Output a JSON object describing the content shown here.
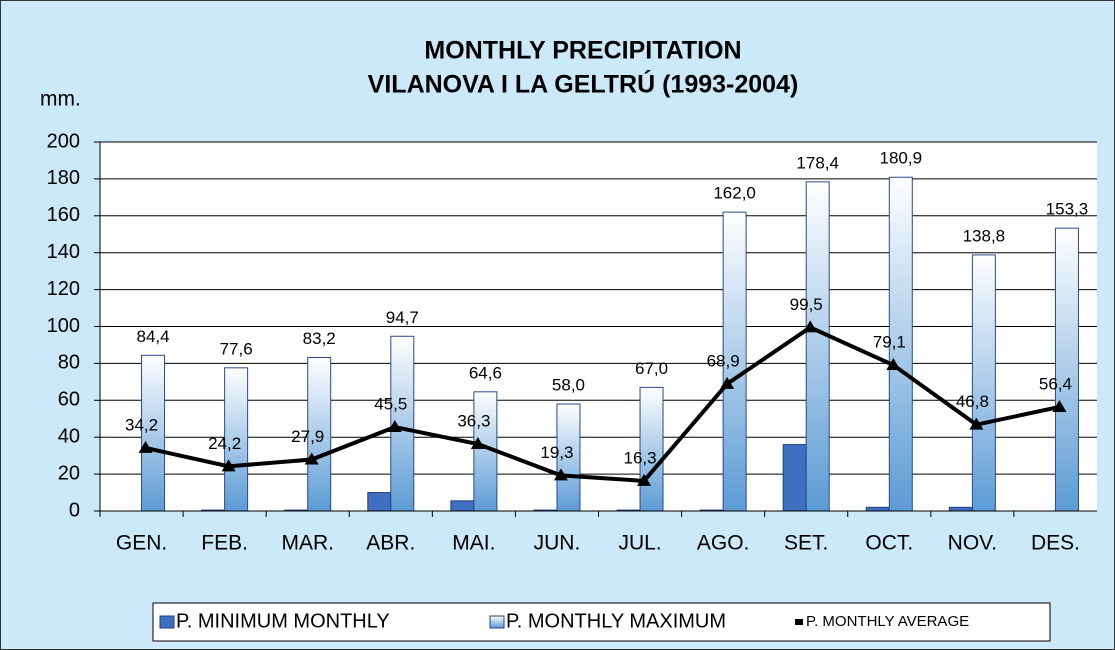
{
  "chart_data": {
    "type": "bar",
    "title": "MONTHLY PRECIPITATION",
    "subtitle": "VILANOVA I LA GELTRÚ (1993-2004)",
    "y_label": "mm.",
    "categories": [
      "GEN.",
      "FEB.",
      "MAR.",
      "ABR.",
      "MAI.",
      "JUN.",
      "JUL.",
      "AGO.",
      "SET.",
      "OCT.",
      "NOV.",
      "DES."
    ],
    "series": [
      {
        "name": "P. MINIMUM MONTHLY",
        "type": "bar",
        "color": "#3f6fc0",
        "values": [
          0,
          0.5,
          0.5,
          10,
          5.5,
          0.5,
          0.5,
          0.5,
          36,
          2,
          2,
          0
        ]
      },
      {
        "name": "P. MONTHLY MAXIMUM",
        "type": "bar",
        "color": "#5b9bd5",
        "values": [
          84.4,
          77.6,
          83.2,
          94.7,
          64.6,
          58.0,
          67.0,
          162.0,
          178.4,
          180.9,
          138.8,
          153.3
        ],
        "value_labels": [
          "84,4",
          "77,6",
          "83,2",
          "94,7",
          "64,6",
          "58,0",
          "67,0",
          "162,0",
          "178,4",
          "180,9",
          "138,8",
          "153,3"
        ]
      },
      {
        "name": "P. MONTHLY AVERAGE",
        "type": "line",
        "color": "#000000",
        "values": [
          34.2,
          24.2,
          27.9,
          45.5,
          36.3,
          19.3,
          16.3,
          68.9,
          99.5,
          79.1,
          46.8,
          56.4
        ],
        "value_labels": [
          "34,2",
          "24,2",
          "27,9",
          "45,5",
          "36,3",
          "19,3",
          "16,3",
          "68,9",
          "99,5",
          "79,1",
          "46,8",
          "56,4"
        ]
      }
    ],
    "ylim": [
      0,
      200
    ],
    "yticks": [
      0,
      20,
      40,
      60,
      80,
      100,
      120,
      140,
      160,
      180,
      200
    ],
    "grid": true,
    "legend": "bottom"
  }
}
